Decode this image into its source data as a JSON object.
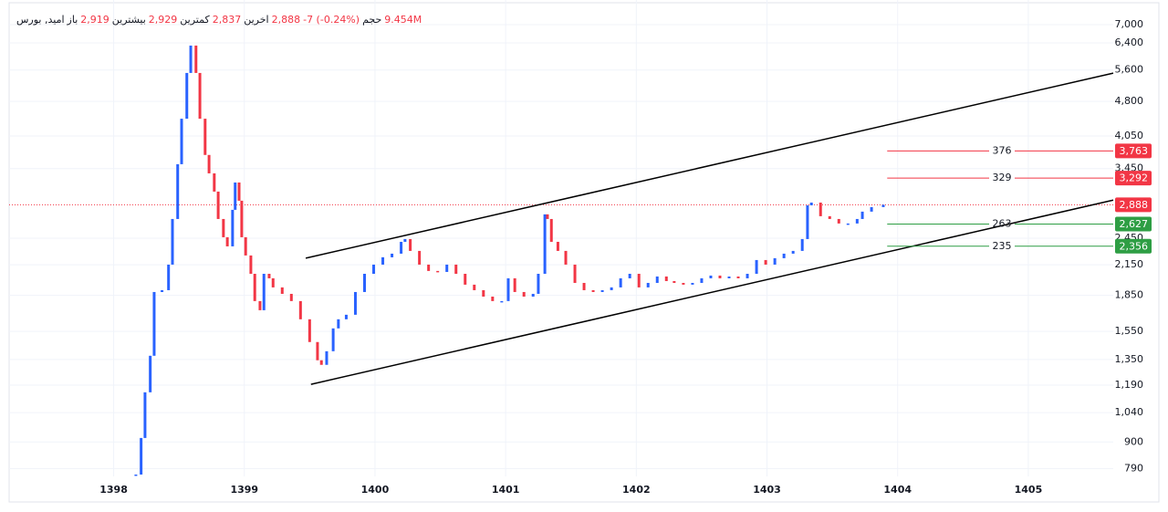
{
  "chart_data": {
    "type": "candlestick",
    "header": {
      "symbol": "امید, بورس",
      "open_label": "باز",
      "open": "2,919",
      "high_label": "بیشترین",
      "high": "2,929",
      "low_label": "کمترین",
      "low": "2,837",
      "close_label": "اخرین",
      "close": "2,888",
      "change": "-7 (-0.24%)",
      "volume_label": "حجم",
      "volume": "9.454M"
    },
    "x": [
      1398.17,
      1398.21,
      1398.24,
      1398.28,
      1398.31,
      1398.37,
      1398.42,
      1398.45,
      1398.49,
      1398.52,
      1398.56,
      1398.59,
      1398.63,
      1398.66,
      1398.7,
      1398.73,
      1398.77,
      1398.8,
      1398.84,
      1398.87,
      1398.91,
      1398.93,
      1398.96,
      1398.98,
      1399.01,
      1399.05,
      1399.08,
      1399.12,
      1399.15,
      1399.19,
      1399.22,
      1399.29,
      1399.36,
      1399.43,
      1399.5,
      1399.56,
      1399.59,
      1399.63,
      1399.68,
      1399.72,
      1399.78,
      1399.85,
      1399.92,
      1399.99,
      1400.06,
      1400.13,
      1400.2,
      1400.23,
      1400.27,
      1400.34,
      1400.41,
      1400.48,
      1400.55,
      1400.62,
      1400.69,
      1400.76,
      1400.83,
      1400.9,
      1400.97,
      1401.02,
      1401.07,
      1401.14,
      1401.21,
      1401.25,
      1401.3,
      1401.32,
      1401.35,
      1401.4,
      1401.46,
      1401.53,
      1401.6,
      1401.67,
      1401.74,
      1401.81,
      1401.88,
      1401.95,
      1402.02,
      1402.09,
      1402.16,
      1402.23,
      1402.29,
      1402.36,
      1402.43,
      1402.5,
      1402.57,
      1402.64,
      1402.71,
      1402.78,
      1402.85,
      1402.92,
      1402.99,
      1403.06,
      1403.13,
      1403.2,
      1403.27,
      1403.31,
      1403.34,
      1403.41,
      1403.48,
      1403.55,
      1403.62,
      1403.69,
      1403.73,
      1403.8,
      1403.89
    ],
    "close": [
      767,
      918,
      1149,
      1375,
      1881,
      1898,
      2152,
      2693,
      3525,
      4408,
      5520,
      6315,
      5520,
      4408,
      3689,
      3370,
      3081,
      2693,
      2462,
      2354,
      2817,
      3222,
      2946,
      2462,
      2251,
      2057,
      1799,
      1720,
      2057,
      2012,
      1924,
      1864,
      1799,
      1645,
      1471,
      1345,
      1315,
      1406,
      1573,
      1645,
      1682,
      1881,
      2057,
      2152,
      2231,
      2271,
      2407,
      2440,
      2302,
      2152,
      2086,
      2076,
      2152,
      2057,
      1950,
      1898,
      1839,
      1799,
      1799,
      2012,
      1881,
      1839,
      1864,
      2057,
      2755,
      2693,
      2407,
      2302,
      2152,
      1967,
      1898,
      1881,
      1898,
      1924,
      2012,
      2057,
      1924,
      1967,
      2030,
      1985,
      1967,
      1950,
      1967,
      2012,
      2039,
      2012,
      2030,
      2012,
      2057,
      2201,
      2152,
      2221,
      2271,
      2302,
      2440,
      2880,
      2919,
      2730,
      2693,
      2634,
      2634,
      2693,
      2792,
      2855,
      2888
    ],
    "up_color": "#2962ff",
    "down_color": "#f23645",
    "log_scale": true,
    "grid": true,
    "xlim": [
      1397.2,
      1405.65
    ],
    "ylim": [
      760,
      7900
    ],
    "xticks": [
      1398,
      1399,
      1400,
      1401,
      1402,
      1403,
      1404,
      1405
    ],
    "yticks": [
      {
        "value": 7000,
        "label": "7,000"
      },
      {
        "value": 6400,
        "label": "6,400"
      },
      {
        "value": 5600,
        "label": "5,600"
      },
      {
        "value": 4800,
        "label": "4,800"
      },
      {
        "value": 4050,
        "label": "4,050"
      },
      {
        "value": 3450,
        "label": "3,450"
      },
      {
        "value": 2450,
        "label": "2,450"
      },
      {
        "value": 2150,
        "label": "2,150"
      },
      {
        "value": 1850,
        "label": "1,850"
      },
      {
        "value": 1550,
        "label": "1,550"
      },
      {
        "value": 1350,
        "label": "1,350"
      },
      {
        "value": 1190,
        "label": "1,190"
      },
      {
        "value": 1040,
        "label": "1,040"
      },
      900,
      790
    ],
    "trendlines": [
      {
        "x": [
          1399.47,
          1405.65
        ],
        "y": [
          2221,
          5515
        ]
      },
      {
        "x": [
          1399.51,
          1405.65
        ],
        "y": [
          1195,
          2955
        ]
      }
    ],
    "line_color": "#000000",
    "levels_x0": 1403.92,
    "levels": [
      {
        "value": 3763,
        "label": "3,763",
        "diff": 376,
        "color": "#f23645"
      },
      {
        "value": 3292,
        "label": "3,292",
        "diff": 329,
        "color": "#f23645"
      },
      {
        "value": 2627,
        "label": "2,627",
        "diff": 263,
        "color": "#2e9e44"
      },
      {
        "value": 2356,
        "label": "2,356",
        "diff": 235,
        "color": "#2e9e44"
      }
    ],
    "last_price": {
      "value": 2888,
      "label": "2,888",
      "color": "#f23645"
    }
  }
}
